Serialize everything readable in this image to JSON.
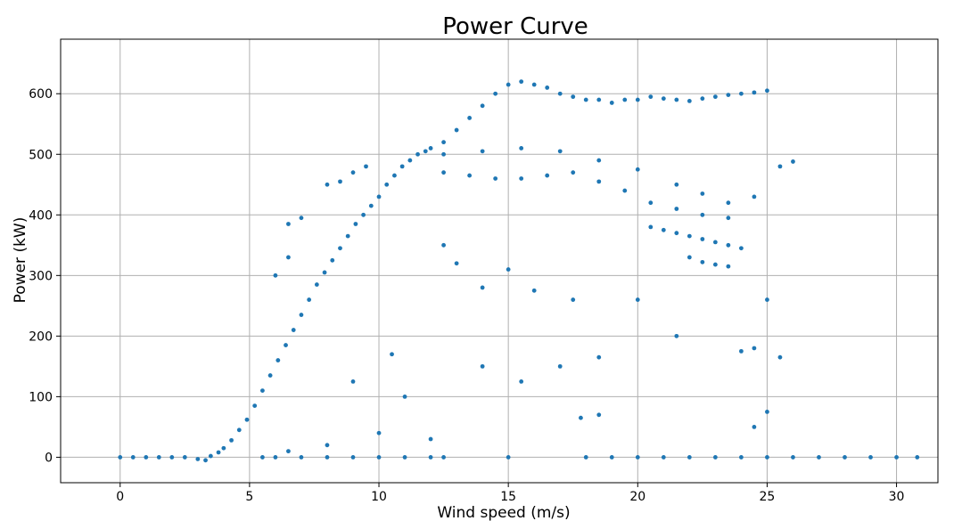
{
  "chart_data": {
    "type": "scatter",
    "title": "Power Curve",
    "xlabel": "Wind speed (m/s)",
    "ylabel": "Power (kW)",
    "xlim": [
      -2.3,
      31.6
    ],
    "ylim": [
      -42,
      690
    ],
    "xticks": [
      0,
      5,
      10,
      15,
      20,
      25,
      30
    ],
    "yticks": [
      0,
      100,
      200,
      300,
      400,
      500,
      600
    ],
    "grid": true,
    "marker_color": "#1f77b4",
    "series": [
      {
        "points": [
          [
            0.0,
            0
          ],
          [
            0.5,
            0
          ],
          [
            1.0,
            0
          ],
          [
            1.5,
            0
          ],
          [
            2.0,
            0
          ],
          [
            2.5,
            0
          ],
          [
            3.0,
            -3
          ],
          [
            3.3,
            -5
          ],
          [
            3.5,
            2
          ],
          [
            3.8,
            8
          ],
          [
            4.0,
            15
          ],
          [
            4.3,
            28
          ],
          [
            4.6,
            45
          ],
          [
            4.9,
            62
          ],
          [
            5.2,
            85
          ],
          [
            5.5,
            110
          ],
          [
            5.8,
            135
          ],
          [
            6.1,
            160
          ],
          [
            6.4,
            185
          ],
          [
            6.7,
            210
          ],
          [
            7.0,
            235
          ],
          [
            7.3,
            260
          ],
          [
            7.6,
            285
          ],
          [
            7.9,
            305
          ],
          [
            8.2,
            325
          ],
          [
            8.5,
            345
          ],
          [
            8.8,
            365
          ],
          [
            9.1,
            385
          ],
          [
            9.4,
            400
          ],
          [
            9.7,
            415
          ],
          [
            10.0,
            430
          ],
          [
            10.3,
            450
          ],
          [
            10.6,
            465
          ],
          [
            10.9,
            480
          ],
          [
            11.2,
            490
          ],
          [
            11.5,
            500
          ],
          [
            11.8,
            505
          ],
          [
            12.0,
            510
          ],
          [
            12.5,
            520
          ],
          [
            13.0,
            540
          ],
          [
            13.5,
            560
          ],
          [
            14.0,
            580
          ],
          [
            14.5,
            600
          ],
          [
            15.0,
            615
          ],
          [
            15.5,
            620
          ],
          [
            16.0,
            615
          ],
          [
            16.5,
            610
          ],
          [
            17.0,
            600
          ],
          [
            17.5,
            595
          ],
          [
            18.0,
            590
          ],
          [
            18.5,
            590
          ],
          [
            19.0,
            585
          ],
          [
            19.5,
            590
          ],
          [
            20.0,
            590
          ],
          [
            20.5,
            595
          ],
          [
            21.0,
            592
          ],
          [
            21.5,
            590
          ],
          [
            22.0,
            588
          ],
          [
            22.5,
            592
          ],
          [
            23.0,
            595
          ],
          [
            23.5,
            598
          ],
          [
            24.0,
            600
          ],
          [
            24.5,
            602
          ],
          [
            25.0,
            605
          ],
          [
            12.5,
            470
          ],
          [
            13.5,
            465
          ],
          [
            14.5,
            460
          ],
          [
            15.5,
            460
          ],
          [
            16.5,
            465
          ],
          [
            17.5,
            470
          ],
          [
            18.5,
            455
          ],
          [
            19.5,
            440
          ],
          [
            20.5,
            420
          ],
          [
            21.5,
            410
          ],
          [
            22.5,
            400
          ],
          [
            23.5,
            395
          ],
          [
            12.5,
            500
          ],
          [
            14.0,
            505
          ],
          [
            15.5,
            510
          ],
          [
            17.0,
            505
          ],
          [
            18.5,
            490
          ],
          [
            20.0,
            475
          ],
          [
            21.5,
            450
          ],
          [
            22.5,
            435
          ],
          [
            23.5,
            420
          ],
          [
            24.5,
            430
          ],
          [
            25.5,
            480
          ],
          [
            26.0,
            488
          ],
          [
            20.5,
            380
          ],
          [
            21.0,
            375
          ],
          [
            21.5,
            370
          ],
          [
            22.0,
            365
          ],
          [
            22.5,
            360
          ],
          [
            23.0,
            355
          ],
          [
            23.5,
            350
          ],
          [
            24.0,
            345
          ],
          [
            22.0,
            330
          ],
          [
            22.5,
            322
          ],
          [
            23.0,
            318
          ],
          [
            23.5,
            315
          ],
          [
            8.0,
            450
          ],
          [
            8.5,
            455
          ],
          [
            9.0,
            470
          ],
          [
            9.5,
            480
          ],
          [
            6.5,
            385
          ],
          [
            7.0,
            395
          ],
          [
            6.0,
            300
          ],
          [
            6.5,
            330
          ],
          [
            13.0,
            320
          ],
          [
            14.0,
            280
          ],
          [
            15.0,
            310
          ],
          [
            12.5,
            350
          ],
          [
            16.0,
            275
          ],
          [
            17.5,
            260
          ],
          [
            10.5,
            170
          ],
          [
            9.0,
            125
          ],
          [
            11.0,
            100
          ],
          [
            14.0,
            150
          ],
          [
            15.5,
            125
          ],
          [
            17.0,
            150
          ],
          [
            18.5,
            165
          ],
          [
            20.0,
            260
          ],
          [
            21.5,
            200
          ],
          [
            24.0,
            175
          ],
          [
            24.5,
            180
          ],
          [
            25.0,
            260
          ],
          [
            25.5,
            165
          ],
          [
            17.8,
            65
          ],
          [
            18.5,
            70
          ],
          [
            25.0,
            75
          ],
          [
            10.0,
            40
          ],
          [
            12.0,
            30
          ],
          [
            8.0,
            20
          ],
          [
            6.5,
            10
          ],
          [
            24.5,
            50
          ],
          [
            5.5,
            0
          ],
          [
            6.0,
            0
          ],
          [
            7.0,
            0
          ],
          [
            8.0,
            0
          ],
          [
            9.0,
            0
          ],
          [
            10.0,
            0
          ],
          [
            11.0,
            0
          ],
          [
            12.0,
            0
          ],
          [
            12.5,
            0
          ],
          [
            15.0,
            0
          ],
          [
            18.0,
            0
          ],
          [
            19.0,
            0
          ],
          [
            20.0,
            0
          ],
          [
            21.0,
            0
          ],
          [
            22.0,
            0
          ],
          [
            23.0,
            0
          ],
          [
            24.0,
            0
          ],
          [
            25.0,
            0
          ],
          [
            26.0,
            0
          ],
          [
            27.0,
            0
          ],
          [
            28.0,
            0
          ],
          [
            29.0,
            0
          ],
          [
            30.0,
            0
          ],
          [
            30.8,
            0
          ]
        ]
      }
    ]
  }
}
